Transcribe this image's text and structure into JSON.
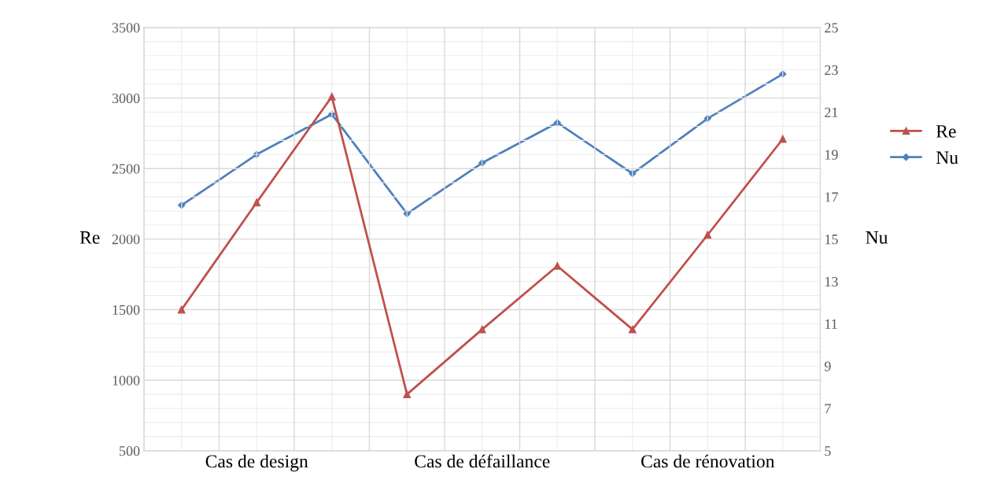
{
  "chart_data": {
    "type": "line",
    "ylabel": "Re",
    "y2label": "Nu",
    "categories": [
      null,
      "Cas de design",
      null,
      null,
      "Cas de défaillance",
      null,
      null,
      "Cas de rénovation",
      null
    ],
    "series": [
      {
        "name": "Re",
        "color": "#c0504d",
        "marker": "triangle",
        "values": [
          1500,
          2260,
          3010,
          900,
          1360,
          1810,
          1360,
          2030,
          2710
        ]
      },
      {
        "name": "Nu",
        "color": "#4f81bd",
        "marker": "diamond",
        "axis": "y2",
        "values": [
          16.6,
          19.0,
          20.9,
          16.2,
          18.6,
          20.5,
          18.1,
          20.7,
          22.8
        ]
      }
    ],
    "ylim": [
      500,
      3500
    ],
    "yticks": [
      500,
      1000,
      1500,
      2000,
      2500,
      3000,
      3500
    ],
    "y2lim": [
      5,
      25
    ],
    "y2ticks": [
      5,
      7,
      9,
      11,
      13,
      15,
      17,
      19,
      21,
      23,
      25
    ],
    "grid": true,
    "legend": "right"
  }
}
